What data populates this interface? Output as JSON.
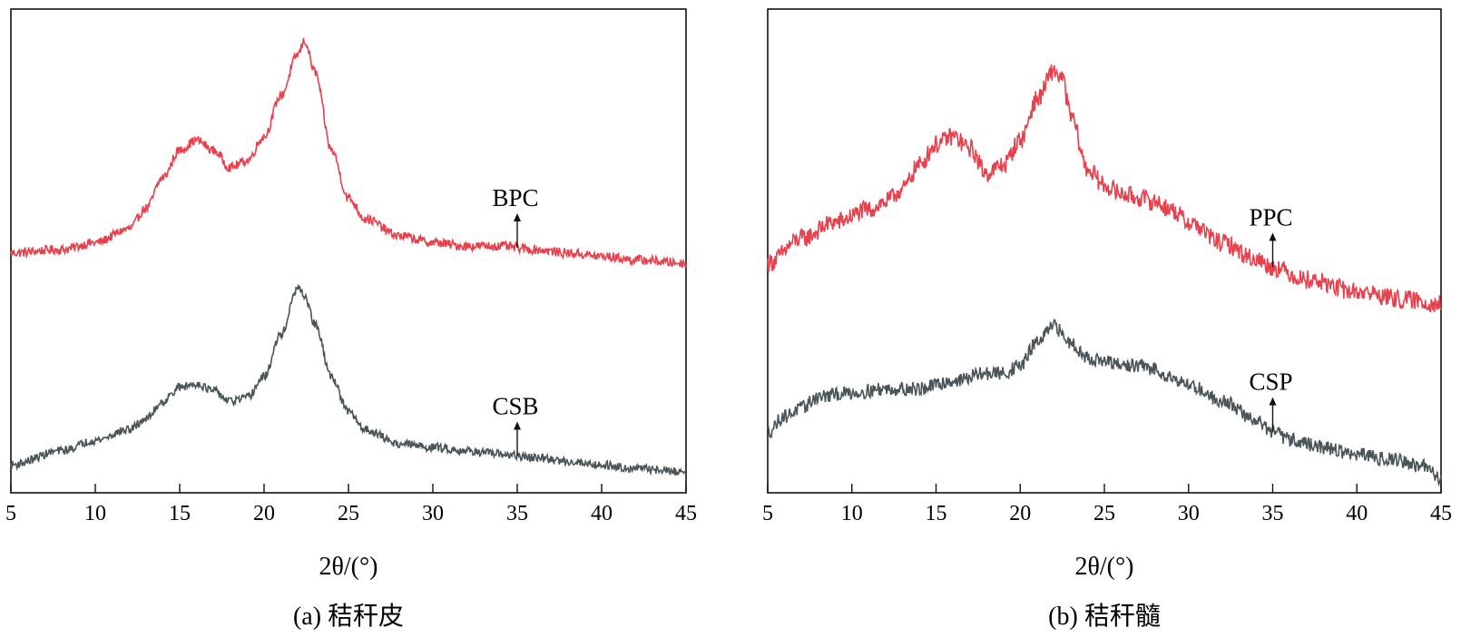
{
  "chart_data": [
    {
      "type": "line",
      "caption": "(a) 秸秆皮",
      "xlabel": "2θ/(°)",
      "ylabel": "",
      "xlim": [
        5,
        45
      ],
      "xticks": [
        5,
        10,
        15,
        20,
        25,
        30,
        35,
        40,
        45
      ],
      "grid": false,
      "legend": "none",
      "series": [
        {
          "name": "BPC",
          "color": "#e8404c",
          "points": [
            [
              5,
              0.42
            ],
            [
              8,
              0.43
            ],
            [
              10,
              0.45
            ],
            [
              12,
              0.49
            ],
            [
              13,
              0.55
            ],
            [
              14,
              0.64
            ],
            [
              15,
              0.72
            ],
            [
              16,
              0.75
            ],
            [
              17,
              0.72
            ],
            [
              18,
              0.67
            ],
            [
              19,
              0.69
            ],
            [
              20,
              0.76
            ],
            [
              21,
              0.88
            ],
            [
              22,
              1.0
            ],
            [
              22.4,
              1.04
            ],
            [
              23,
              0.95
            ],
            [
              24,
              0.72
            ],
            [
              25,
              0.58
            ],
            [
              26,
              0.52
            ],
            [
              28,
              0.47
            ],
            [
              30,
              0.45
            ],
            [
              32,
              0.44
            ],
            [
              34,
              0.44
            ],
            [
              36,
              0.43
            ],
            [
              38,
              0.42
            ],
            [
              40,
              0.41
            ],
            [
              42,
              0.4
            ],
            [
              45,
              0.39
            ]
          ],
          "annotation": {
            "text": "BPC",
            "x": 35
          }
        },
        {
          "name": "CSB",
          "color": "#4a5559",
          "points": [
            [
              5,
              0.05
            ],
            [
              8,
              0.09
            ],
            [
              10,
              0.12
            ],
            [
              12,
              0.15
            ],
            [
              13,
              0.18
            ],
            [
              14,
              0.23
            ],
            [
              15,
              0.27
            ],
            [
              16,
              0.28
            ],
            [
              17,
              0.26
            ],
            [
              18,
              0.23
            ],
            [
              19,
              0.24
            ],
            [
              20,
              0.3
            ],
            [
              21,
              0.42
            ],
            [
              22,
              0.55
            ],
            [
              22.4,
              0.53
            ],
            [
              23,
              0.45
            ],
            [
              24,
              0.3
            ],
            [
              25,
              0.2
            ],
            [
              26,
              0.15
            ],
            [
              28,
              0.11
            ],
            [
              30,
              0.1
            ],
            [
              32,
              0.09
            ],
            [
              34,
              0.08
            ],
            [
              36,
              0.07
            ],
            [
              38,
              0.06
            ],
            [
              40,
              0.05
            ],
            [
              42,
              0.04
            ],
            [
              45,
              0.03
            ]
          ],
          "annotation": {
            "text": "CSB",
            "x": 35
          }
        }
      ]
    },
    {
      "type": "line",
      "caption": "(b) 秸秆髓",
      "xlabel": "2θ/(°)",
      "ylabel": "",
      "xlim": [
        5,
        45
      ],
      "xticks": [
        5,
        10,
        15,
        20,
        25,
        30,
        35,
        40,
        45
      ],
      "grid": false,
      "legend": "none",
      "series": [
        {
          "name": "PPC",
          "color": "#e8404c",
          "points": [
            [
              5,
              0.5
            ],
            [
              7,
              0.56
            ],
            [
              9,
              0.6
            ],
            [
              11,
              0.63
            ],
            [
              12,
              0.65
            ],
            [
              13,
              0.68
            ],
            [
              14,
              0.74
            ],
            [
              15,
              0.79
            ],
            [
              16,
              0.81
            ],
            [
              17,
              0.78
            ],
            [
              18,
              0.72
            ],
            [
              19,
              0.74
            ],
            [
              20,
              0.8
            ],
            [
              21,
              0.9
            ],
            [
              22,
              0.97
            ],
            [
              22.5,
              0.95
            ],
            [
              23,
              0.86
            ],
            [
              24,
              0.73
            ],
            [
              25,
              0.69
            ],
            [
              26,
              0.67
            ],
            [
              27,
              0.66
            ],
            [
              28,
              0.65
            ],
            [
              29,
              0.63
            ],
            [
              30,
              0.6
            ],
            [
              32,
              0.55
            ],
            [
              34,
              0.51
            ],
            [
              35,
              0.49
            ],
            [
              37,
              0.46
            ],
            [
              40,
              0.43
            ],
            [
              43,
              0.41
            ],
            [
              45,
              0.4
            ]
          ],
          "annotation": {
            "text": "PPC",
            "x": 35
          }
        },
        {
          "name": "CSP",
          "color": "#4a5559",
          "points": [
            [
              5,
              0.14
            ],
            [
              6,
              0.18
            ],
            [
              7,
              0.2
            ],
            [
              8,
              0.23
            ],
            [
              10,
              0.24
            ],
            [
              12,
              0.25
            ],
            [
              14,
              0.25
            ],
            [
              16,
              0.27
            ],
            [
              18,
              0.29
            ],
            [
              19,
              0.29
            ],
            [
              20,
              0.31
            ],
            [
              21,
              0.37
            ],
            [
              22,
              0.41
            ],
            [
              23,
              0.37
            ],
            [
              24,
              0.33
            ],
            [
              25,
              0.32
            ],
            [
              26,
              0.31
            ],
            [
              27,
              0.31
            ],
            [
              28,
              0.3
            ],
            [
              29,
              0.28
            ],
            [
              30,
              0.26
            ],
            [
              32,
              0.22
            ],
            [
              34,
              0.17
            ],
            [
              35,
              0.14
            ],
            [
              36,
              0.12
            ],
            [
              38,
              0.1
            ],
            [
              40,
              0.08
            ],
            [
              42,
              0.07
            ],
            [
              44,
              0.05
            ],
            [
              45,
              0.02
            ]
          ],
          "annotation": {
            "text": "CSP",
            "x": 35
          }
        }
      ]
    }
  ]
}
